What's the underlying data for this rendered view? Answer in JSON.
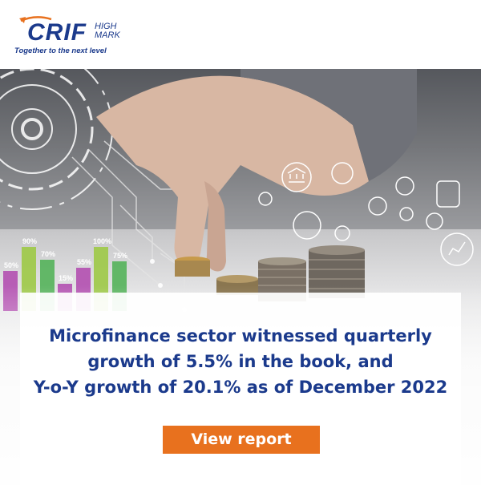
{
  "brand": {
    "name": "CRIF",
    "suffix_line1": "HIGH",
    "suffix_line2": "MARK",
    "tagline": "Together to the next level",
    "color": "#1b3a8c"
  },
  "hero": {
    "bar_labels": [
      "50%",
      "90%",
      "70%",
      "15%",
      "55%",
      "100%",
      "75%"
    ],
    "bar_levels": [
      0.5,
      0.9,
      0.7,
      0.15,
      0.55,
      1.0,
      0.75
    ],
    "icons": [
      "bank-icon",
      "money-bag-icon",
      "cards-icon",
      "calculator-icon",
      "settings-icon",
      "piggy-bank-icon",
      "hierarchy-icon",
      "share-icon",
      "dollar-lock-icon",
      "clock-icon",
      "bar-chart-icon"
    ]
  },
  "headline": {
    "line1": "Microfinance sector witnessed quarterly",
    "line2": "growth of 5.5% in the book, and",
    "line3": "Y-o-Y growth of 20.1% as of December 2022"
  },
  "cta": {
    "label": "View report",
    "color": "#e8711e"
  }
}
